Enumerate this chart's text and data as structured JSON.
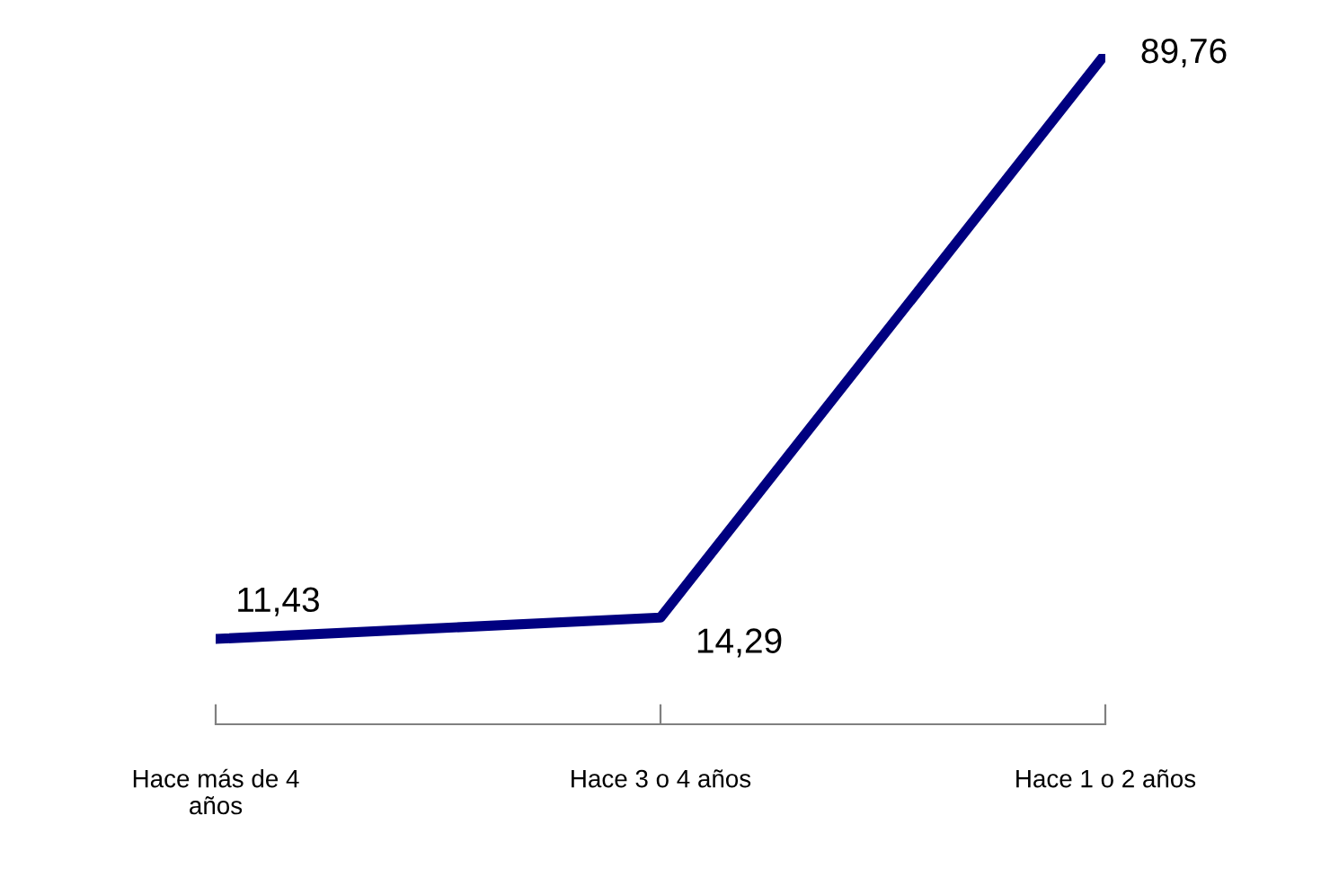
{
  "chart_data": {
    "type": "line",
    "categories": [
      "Hace más de 4 años",
      "Hace 3 o 4 años",
      "Hace 1 o 2 años"
    ],
    "series": [
      {
        "color": "#000080",
        "values": [
          11.43,
          14.29,
          89.76
        ],
        "value_labels": [
          "11,43",
          "14,29",
          "89,76"
        ]
      }
    ],
    "marker": "none",
    "line_style": "solid",
    "grid": false,
    "legend": false,
    "tick_labels": "x"
  }
}
